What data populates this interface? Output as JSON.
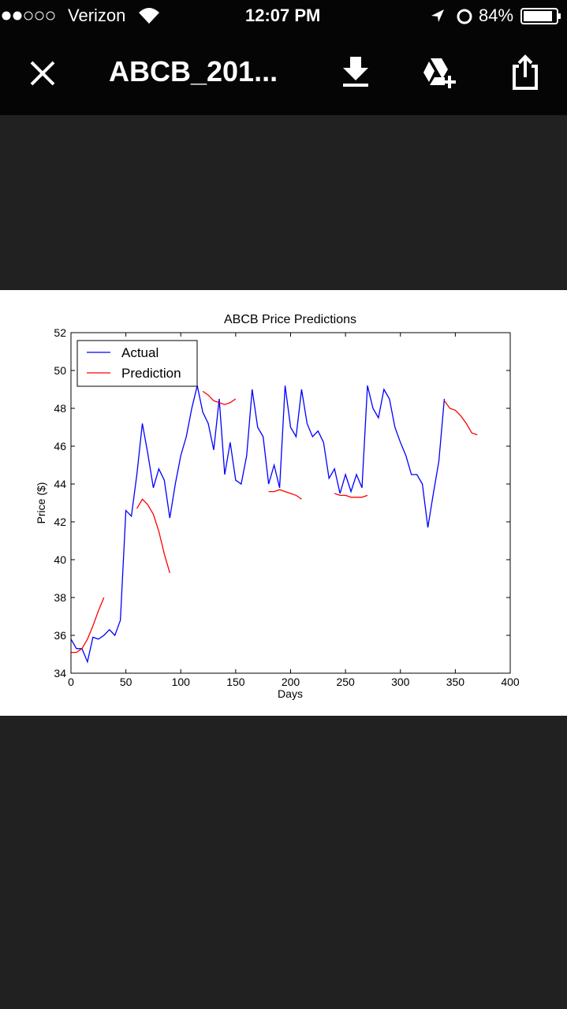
{
  "status_bar": {
    "carrier": "Verizon",
    "time": "12:07 PM",
    "battery": "84%"
  },
  "header": {
    "title": "ABCB_201..."
  },
  "chart_data": {
    "type": "line",
    "title": "ABCB Price Predictions",
    "x_label": "Days",
    "y_label": "Price ($)",
    "x": [
      0,
      5,
      10,
      15,
      20,
      25,
      30,
      35,
      40,
      45,
      50,
      55,
      60,
      65,
      70,
      75,
      80,
      85,
      90,
      95,
      100,
      105,
      110,
      115,
      120,
      125,
      130,
      135,
      140,
      145,
      150,
      155,
      160,
      165,
      170,
      175,
      180,
      185,
      190,
      195,
      200,
      205,
      210,
      215,
      220,
      225,
      230,
      235,
      240,
      245,
      250,
      255,
      260,
      265,
      270,
      275,
      280,
      285,
      290,
      295,
      300,
      305,
      310,
      315,
      320,
      325,
      330,
      335,
      340,
      345,
      350,
      355,
      360,
      365,
      370
    ],
    "series": [
      {
        "name": "Actual",
        "color": "#0000ff",
        "values": [
          35.8,
          35.3,
          35.3,
          34.6,
          35.9,
          35.8,
          36.0,
          36.3,
          36.0,
          36.8,
          42.6,
          42.3,
          44.5,
          47.2,
          45.6,
          43.8,
          44.8,
          44.2,
          42.2,
          44.0,
          45.5,
          46.5,
          48.0,
          49.2,
          47.8,
          47.2,
          45.8,
          48.5,
          44.5,
          46.2,
          44.2,
          44.0,
          45.5,
          49.0,
          47.0,
          46.5,
          44.0,
          45.0,
          43.8,
          49.2,
          47.0,
          46.5,
          49.0,
          47.2,
          46.5,
          46.8,
          46.2,
          44.3,
          44.8,
          43.5,
          44.5,
          43.6,
          44.5,
          43.8,
          49.2,
          48.0,
          47.5,
          49.0,
          48.5,
          47.0,
          46.2,
          45.5,
          44.5,
          44.5,
          44.0,
          41.7,
          43.5,
          45.2,
          48.5,
          null,
          null,
          null,
          null,
          null,
          null
        ]
      },
      {
        "name": "Prediction",
        "color": "#ff0000",
        "values": [
          35.1,
          35.1,
          35.3,
          35.8,
          36.5,
          37.3,
          38.0,
          null,
          null,
          null,
          null,
          null,
          42.7,
          43.2,
          42.9,
          42.4,
          41.5,
          40.3,
          39.3,
          null,
          null,
          null,
          null,
          null,
          48.9,
          48.7,
          48.4,
          48.3,
          48.2,
          48.3,
          48.5,
          null,
          null,
          null,
          null,
          null,
          43.6,
          43.6,
          43.7,
          43.6,
          43.5,
          43.4,
          43.2,
          null,
          null,
          null,
          null,
          null,
          43.5,
          43.4,
          43.4,
          43.3,
          43.3,
          43.3,
          43.4,
          null,
          null,
          null,
          null,
          null,
          null,
          null,
          null,
          null,
          null,
          null,
          null,
          null,
          48.4,
          48.0,
          47.9,
          47.6,
          47.2,
          46.7,
          46.6
        ]
      }
    ],
    "xlim": [
      0,
      400
    ],
    "xticks": [
      0,
      50,
      100,
      150,
      200,
      250,
      300,
      350,
      400
    ],
    "ylim": [
      34,
      52
    ],
    "yticks": [
      34,
      36,
      38,
      40,
      42,
      44,
      46,
      48,
      50,
      52
    ],
    "legend": "upper left",
    "grid": false
  }
}
